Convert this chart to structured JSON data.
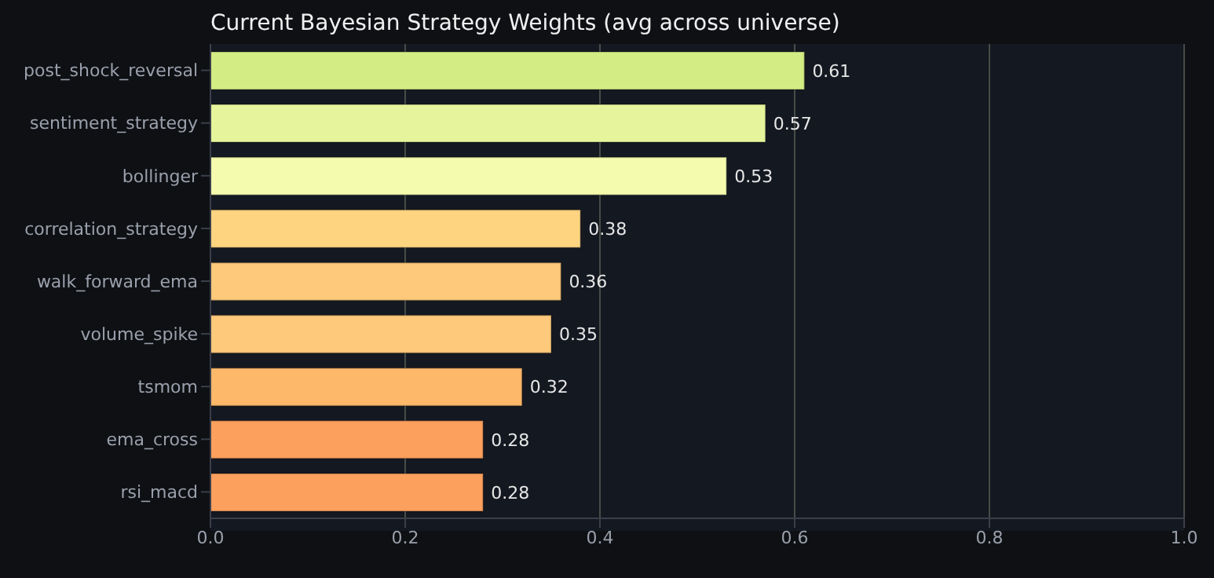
{
  "chart_data": {
    "type": "bar",
    "orientation": "horizontal",
    "title": "Current Bayesian Strategy Weights (avg across universe)",
    "categories": [
      "post_shock_reversal",
      "sentiment_strategy",
      "bollinger",
      "correlation_strategy",
      "walk_forward_ema",
      "volume_spike",
      "tsmom",
      "ema_cross",
      "rsi_macd"
    ],
    "values": [
      0.61,
      0.57,
      0.53,
      0.38,
      0.36,
      0.35,
      0.32,
      0.28,
      0.28
    ],
    "colors": [
      "#d4ec84",
      "#e6f59c",
      "#f5fbae",
      "#fed481",
      "#fec97a",
      "#fec97a",
      "#fdb86a",
      "#fca05e",
      "#fca05e"
    ],
    "xlim": [
      0,
      1
    ],
    "xticks": [
      {
        "value": 0,
        "label": "0.0"
      },
      0.2,
      0.4,
      0.6,
      0.8,
      {
        "value": 1,
        "label": "1.0"
      }
    ],
    "grid": "x",
    "data_labels": true
  }
}
